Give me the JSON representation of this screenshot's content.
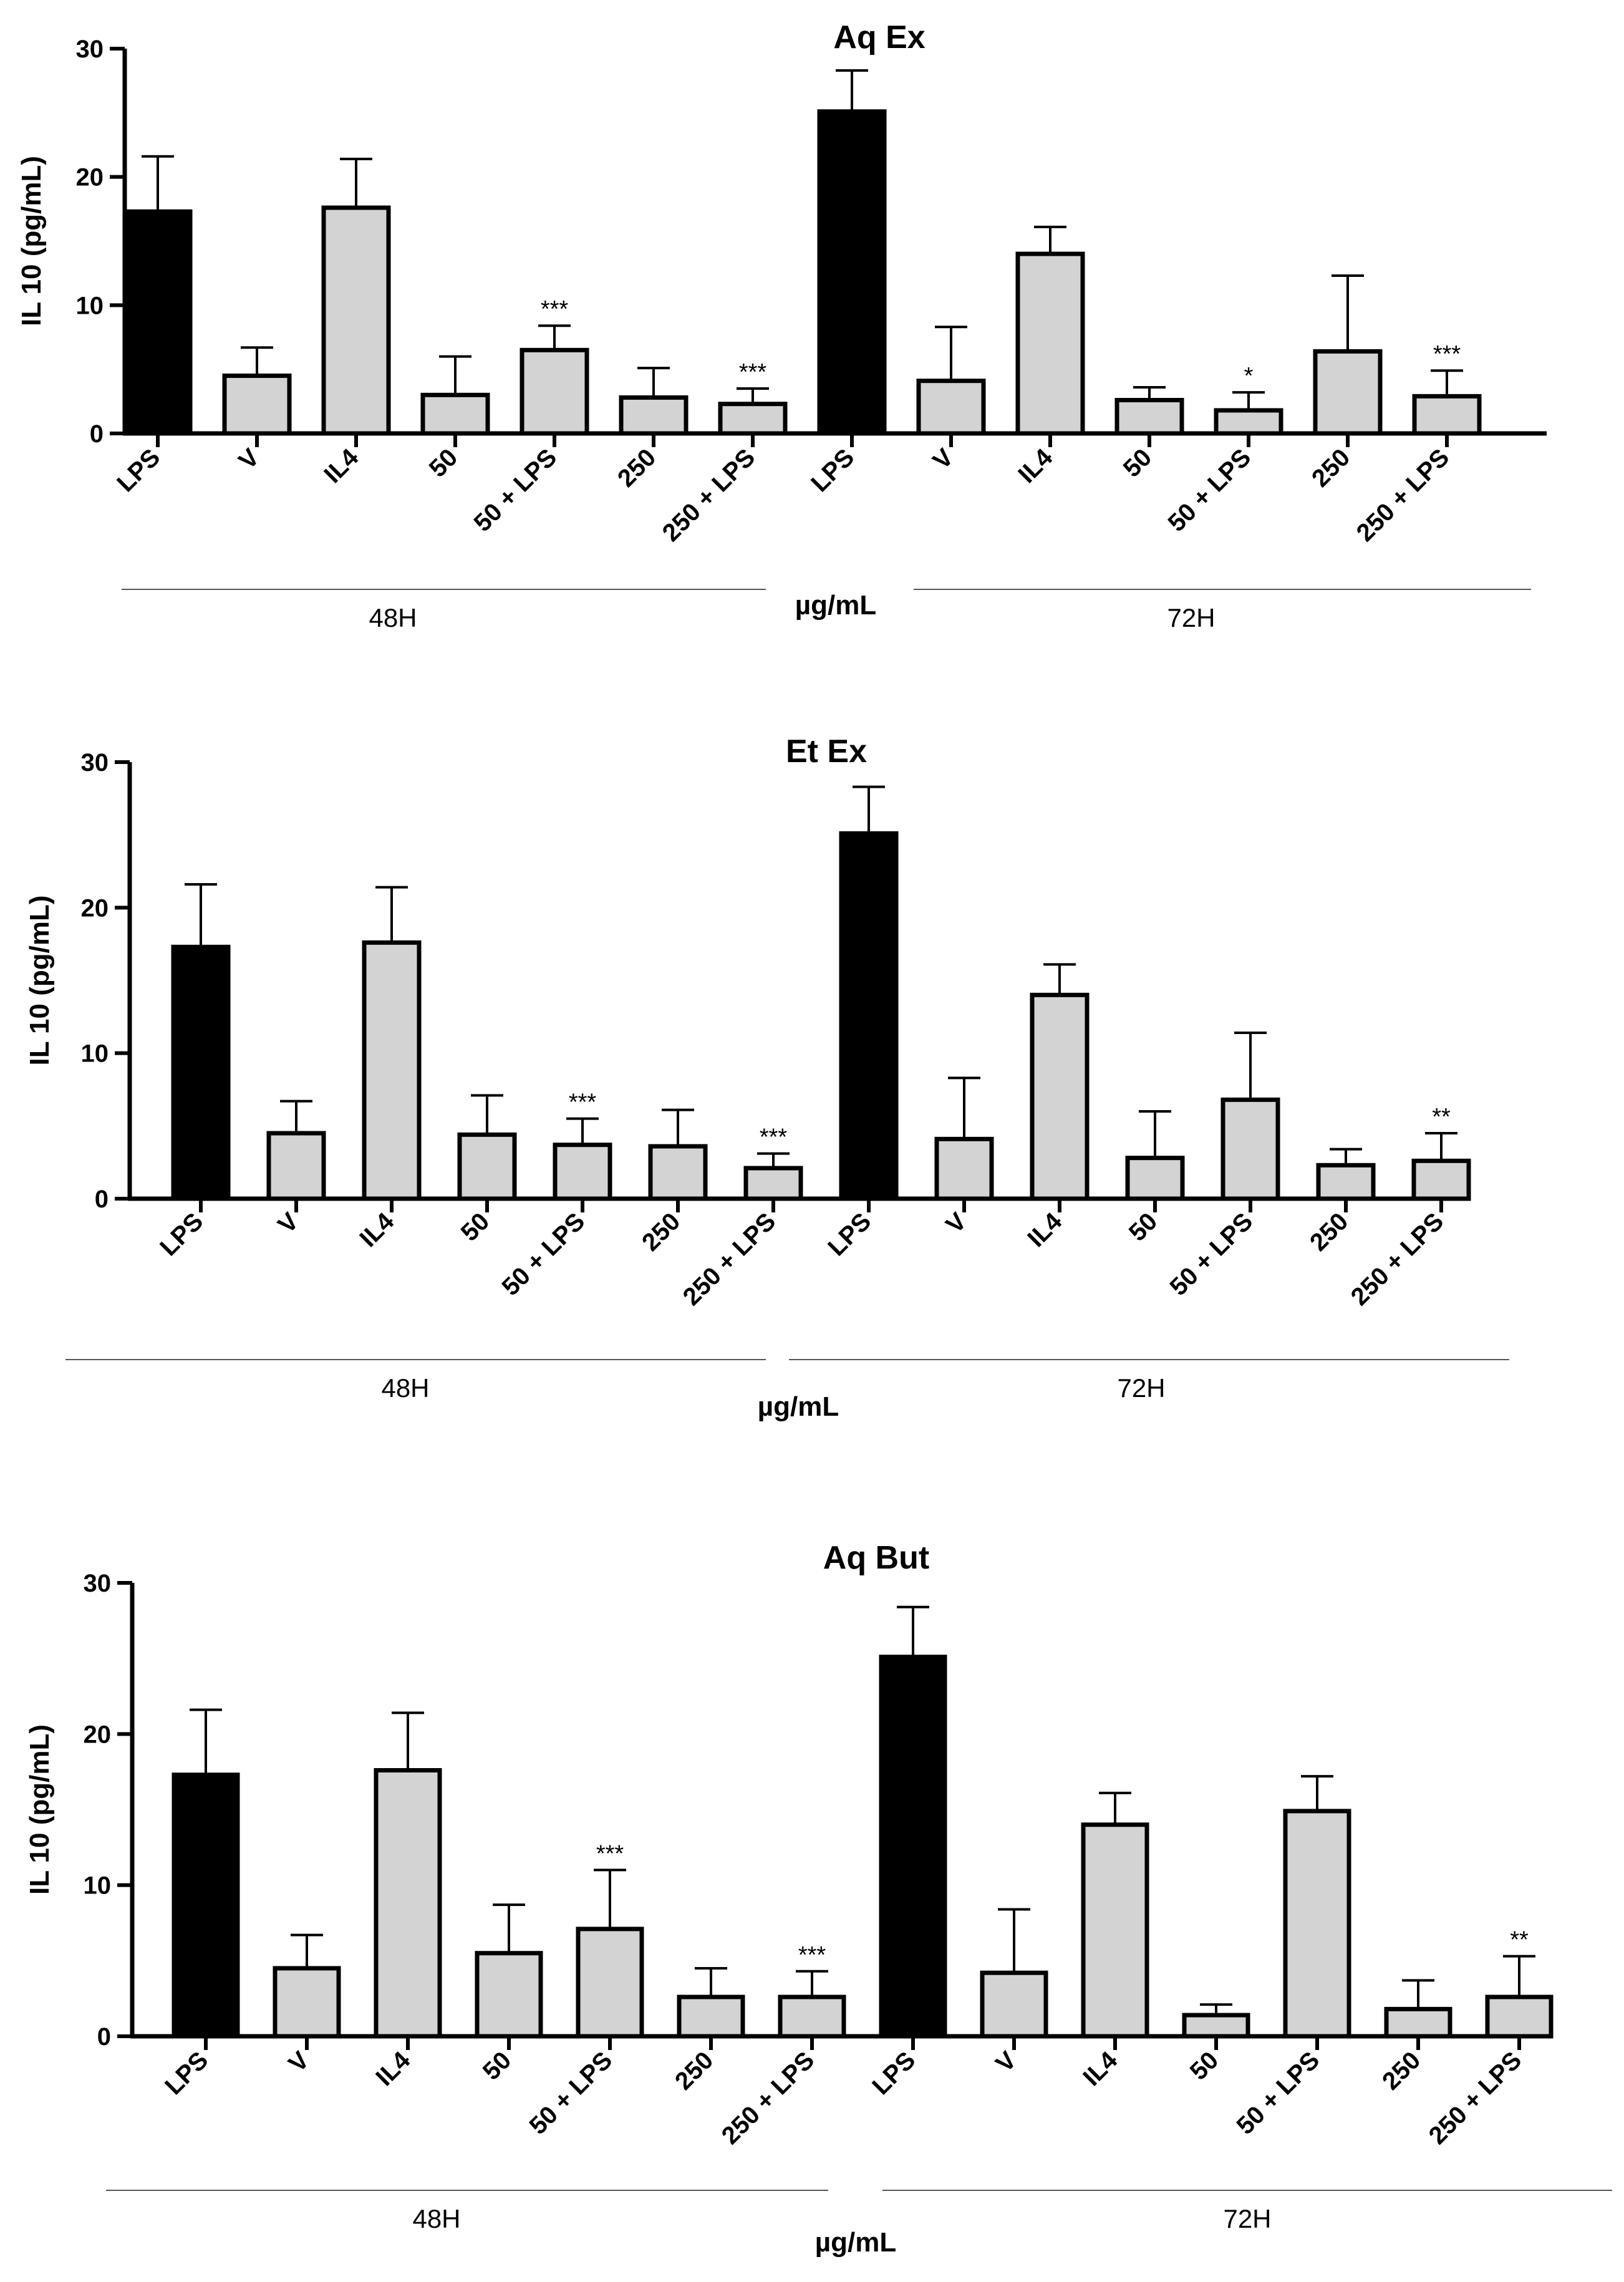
{
  "colors": {
    "control_bar": "#000000",
    "treatment_bar": "#d3d3d3",
    "outline": "#000000"
  },
  "chart_data": [
    {
      "type": "bar",
      "title": "Aq Ex",
      "ylabel": "IL 10 (pg/mL)",
      "xlabel": "µg/mL",
      "ylim": [
        0,
        30
      ],
      "yticks": [
        0,
        10,
        20,
        30
      ],
      "categories": [
        "LPS",
        "V",
        "IL4",
        "50",
        "50 + LPS",
        "250",
        "250 + LPS",
        "LPS",
        "V",
        "IL4",
        "50",
        "50 + LPS",
        "250",
        "250 + LPS"
      ],
      "groups": [
        "48H",
        "72H"
      ],
      "values": [
        17.3,
        4.5,
        17.6,
        3.0,
        6.5,
        2.8,
        2.3,
        25.1,
        4.1,
        14.0,
        2.6,
        1.8,
        6.4,
        2.9
      ],
      "errors": [
        4.3,
        2.2,
        3.8,
        3.0,
        1.9,
        2.3,
        1.2,
        3.2,
        4.2,
        2.1,
        1.0,
        1.4,
        5.9,
        2.0
      ],
      "significance": [
        "",
        "",
        "",
        "",
        "***",
        "",
        "***",
        "",
        "",
        "",
        "",
        "*",
        "",
        "***"
      ],
      "bar_fill": [
        "control",
        "treatment",
        "treatment",
        "treatment",
        "treatment",
        "treatment",
        "treatment",
        "control",
        "treatment",
        "treatment",
        "treatment",
        "treatment",
        "treatment",
        "treatment"
      ]
    },
    {
      "type": "bar",
      "title": "Et Ex",
      "ylabel": "IL 10 (pg/mL)",
      "xlabel": "µg/mL",
      "ylim": [
        0,
        30
      ],
      "yticks": [
        0,
        10,
        20,
        30
      ],
      "categories": [
        "LPS",
        "V",
        "IL4",
        "50",
        "50 + LPS",
        "250",
        "250 + LPS",
        "LPS",
        "V",
        "IL4",
        "50",
        "50 + LPS",
        "250",
        "250 + LPS"
      ],
      "groups": [
        "48H",
        "72H"
      ],
      "values": [
        17.3,
        4.5,
        17.6,
        4.4,
        3.7,
        3.6,
        2.1,
        25.1,
        4.1,
        14.0,
        2.8,
        6.8,
        2.3,
        2.6
      ],
      "errors": [
        4.3,
        2.2,
        3.8,
        2.7,
        1.8,
        2.5,
        1.0,
        3.2,
        4.2,
        2.1,
        3.2,
        4.6,
        1.1,
        1.9
      ],
      "significance": [
        "",
        "",
        "",
        "",
        "***",
        "",
        "***",
        "",
        "",
        "",
        "",
        "",
        "",
        "**"
      ],
      "bar_fill": [
        "control",
        "treatment",
        "treatment",
        "treatment",
        "treatment",
        "treatment",
        "treatment",
        "control",
        "treatment",
        "treatment",
        "treatment",
        "treatment",
        "treatment",
        "treatment"
      ]
    },
    {
      "type": "bar",
      "title": "Aq But",
      "ylabel": "IL 10 (pg/mL)",
      "xlabel": "µg/mL",
      "ylim": [
        0,
        30
      ],
      "yticks": [
        0,
        10,
        20,
        30
      ],
      "categories": [
        "LPS",
        "V",
        "IL4",
        "50",
        "50 + LPS",
        "250",
        "250 + LPS",
        "LPS",
        "V",
        "IL4",
        "50",
        "50 + LPS",
        "250",
        "250 + LPS"
      ],
      "groups": [
        "48H",
        "72H"
      ],
      "values": [
        17.3,
        4.5,
        17.6,
        5.5,
        7.1,
        2.6,
        2.6,
        25.1,
        4.2,
        14.0,
        1.4,
        14.9,
        1.8,
        2.6
      ],
      "errors": [
        4.3,
        2.2,
        3.8,
        3.2,
        3.9,
        1.9,
        1.7,
        3.3,
        4.2,
        2.1,
        0.7,
        2.3,
        1.9,
        2.7
      ],
      "significance": [
        "",
        "",
        "",
        "",
        "***",
        "",
        "***",
        "",
        "",
        "",
        "",
        "",
        "",
        "**"
      ],
      "bar_fill": [
        "control",
        "treatment",
        "treatment",
        "treatment",
        "treatment",
        "treatment",
        "treatment",
        "control",
        "treatment",
        "treatment",
        "treatment",
        "treatment",
        "treatment",
        "treatment"
      ]
    }
  ]
}
